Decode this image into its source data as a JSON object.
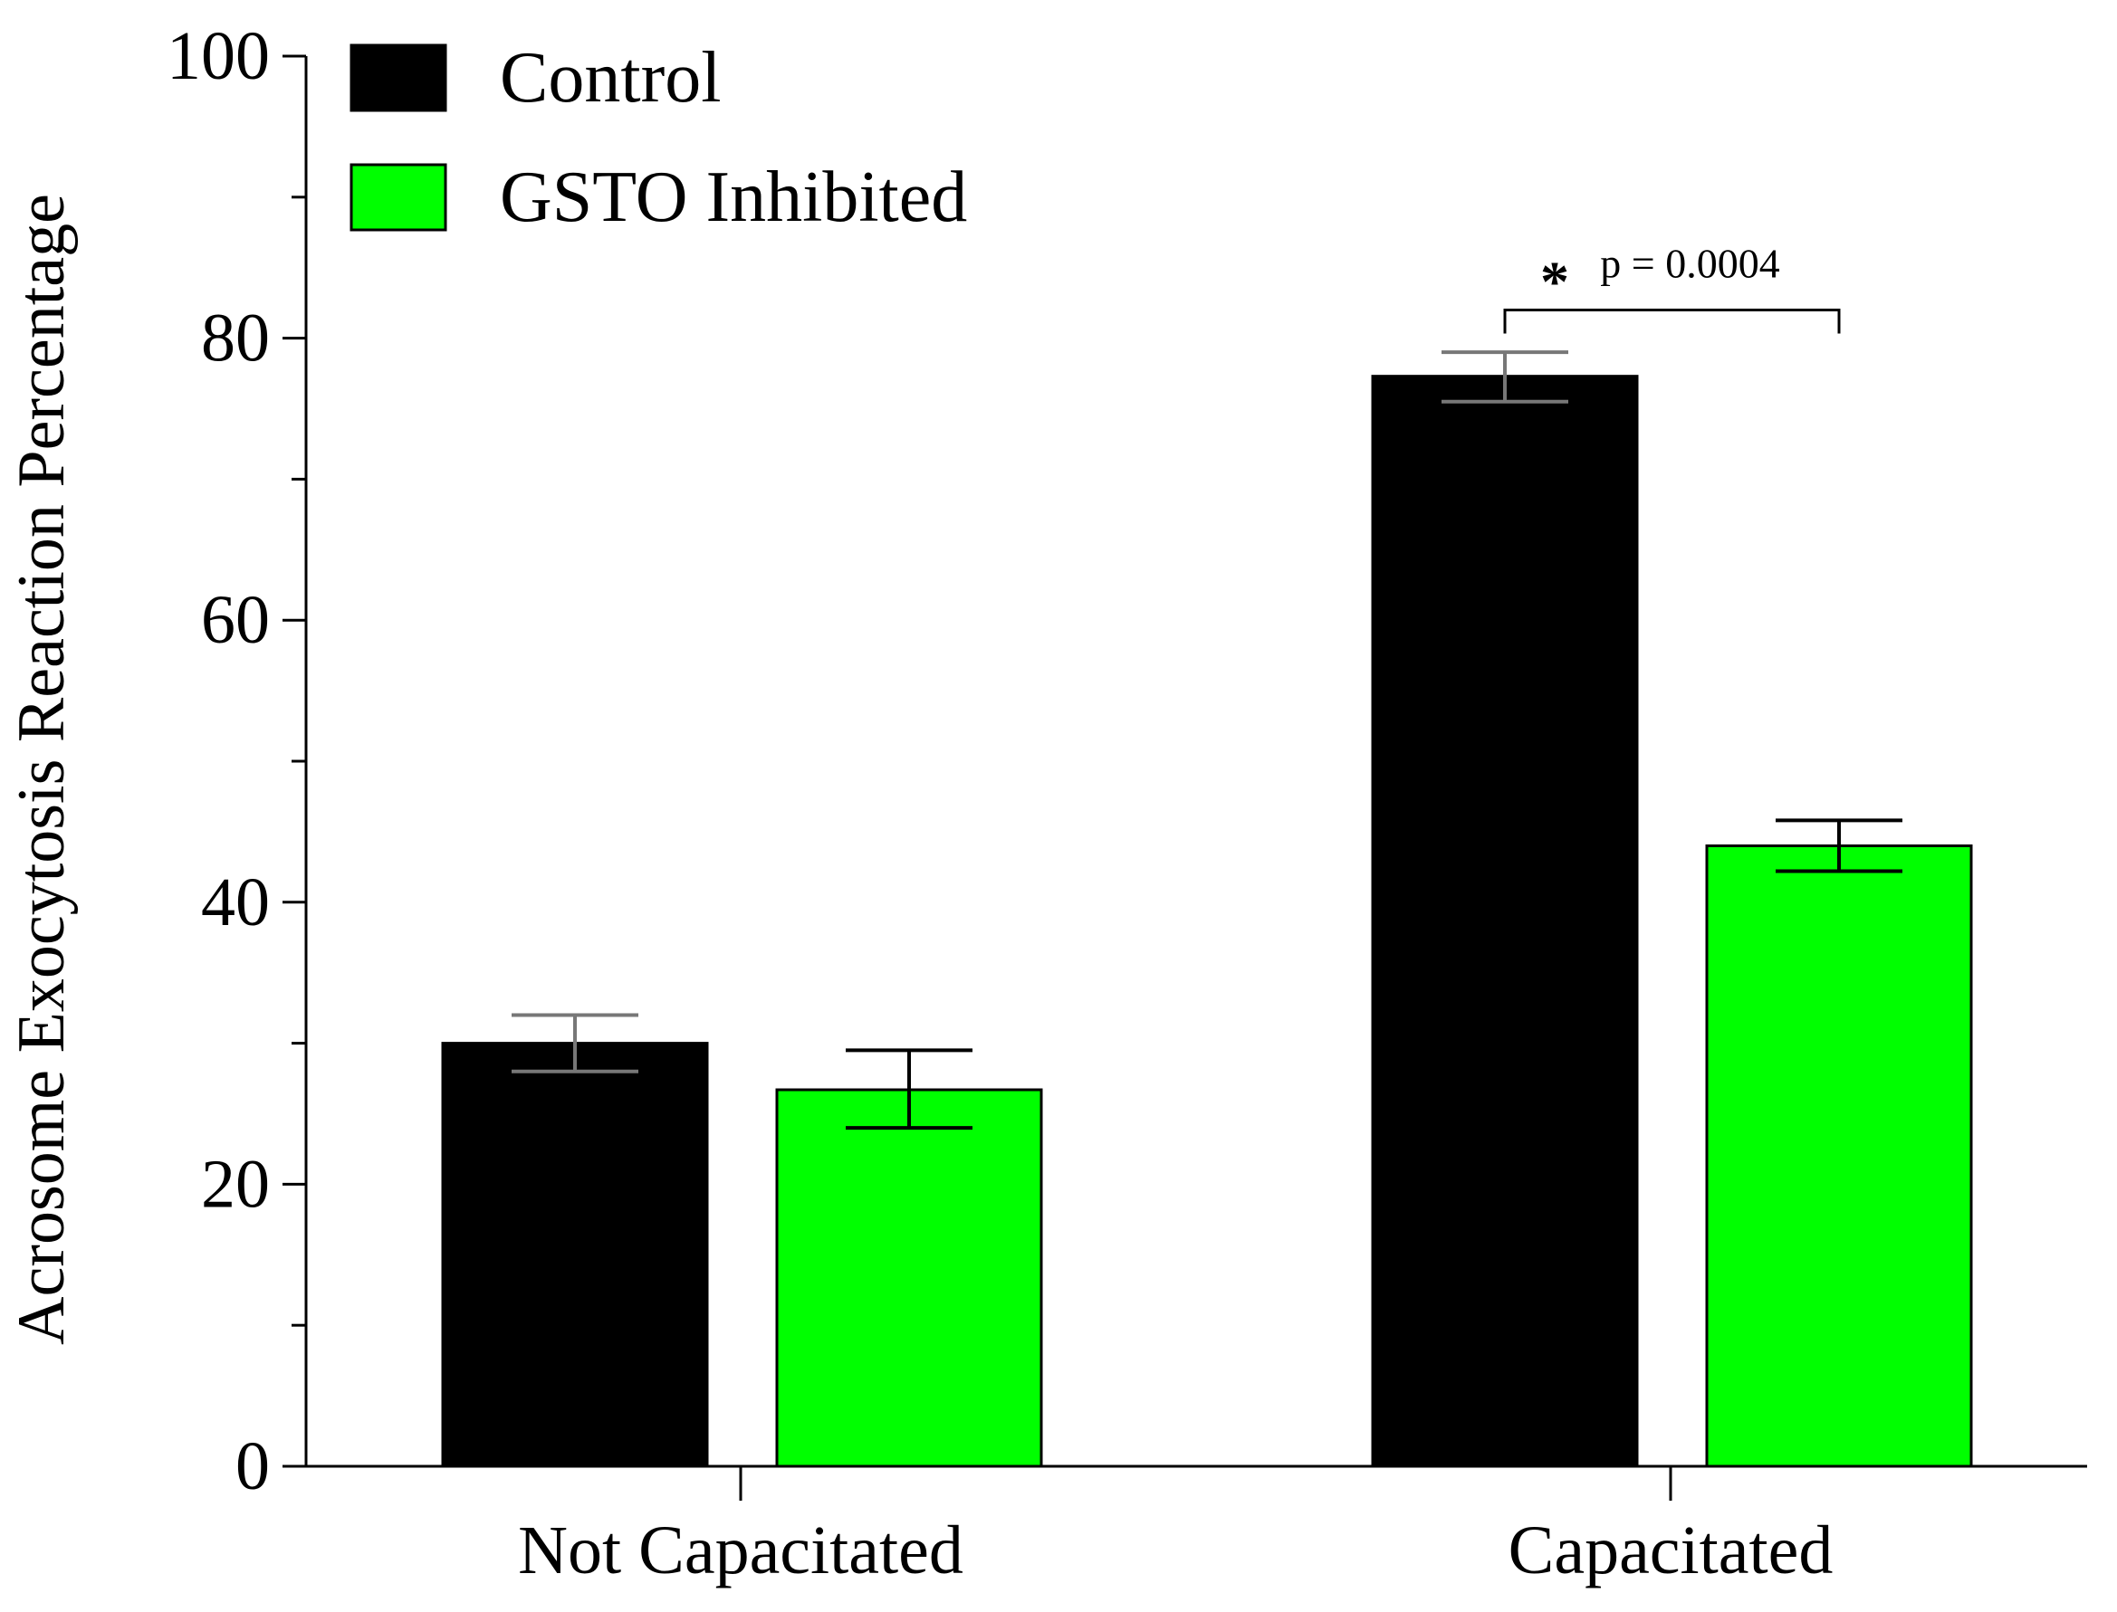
{
  "chart_data": {
    "type": "bar",
    "title": "",
    "xlabel": "",
    "ylabel": "Acrosome Exocytosis Reaction Percentage",
    "ylim": [
      0,
      100
    ],
    "yticks": [
      0,
      20,
      40,
      60,
      80,
      100
    ],
    "yticks_minor": [
      10,
      30,
      50,
      70,
      90
    ],
    "categories": [
      "Not Capacitated",
      "Capacitated"
    ],
    "series": [
      {
        "name": "Control",
        "color": "#000000",
        "values": [
          30,
          77.3
        ],
        "err_low": [
          28,
          75.5
        ],
        "err_high": [
          32,
          79
        ]
      },
      {
        "name": "GSTO Inhibited",
        "color": "#00ff00",
        "values": [
          26.7,
          44
        ],
        "err_low": [
          24,
          42.2
        ],
        "err_high": [
          29.5,
          45.8
        ]
      }
    ],
    "legend": {
      "position": "top-left",
      "items": [
        "Control",
        "GSTO Inhibited"
      ]
    },
    "annotations": [
      {
        "category": "Capacitated",
        "star": "*",
        "text": "p = 0.0004",
        "bracket_level": 82
      }
    ],
    "grid": false
  }
}
